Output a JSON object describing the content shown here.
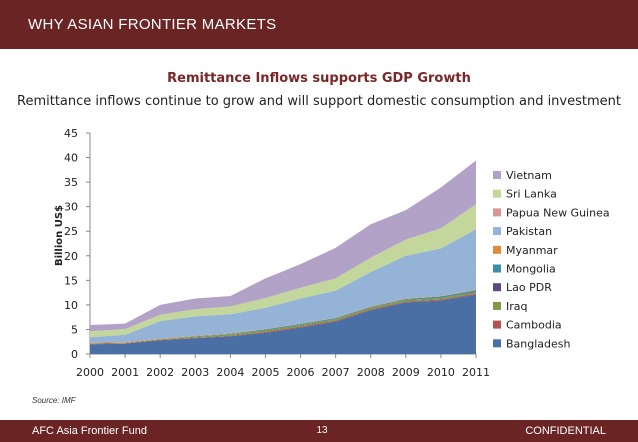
{
  "header": {
    "title": "WHY ASIAN FRONTIER MARKETS",
    "bg_color": "#6b2424"
  },
  "chart_data": {
    "type": "area",
    "stacked": true,
    "title": "Remittance Inflows supports GDP Growth",
    "subtitle": "Remittance inflows continue to grow and will support domestic consumption and investment",
    "xlabel": "",
    "ylabel": "Billion US$",
    "ylim": [
      0,
      45
    ],
    "yticks": [
      0,
      5,
      10,
      15,
      20,
      25,
      30,
      35,
      40,
      45
    ],
    "grid": false,
    "legend_position": "right",
    "x": [
      "2000",
      "2001",
      "2002",
      "2003",
      "2004",
      "2005",
      "2006",
      "2007",
      "2008",
      "2009",
      "2010",
      "2011"
    ],
    "series": [
      {
        "name": "Bangladesh",
        "color": "#4a6fa5",
        "values": [
          2.0,
          2.1,
          2.8,
          3.2,
          3.6,
          4.3,
          5.4,
          6.6,
          8.9,
          10.5,
          10.9,
          12.1
        ]
      },
      {
        "name": "Cambodia",
        "color": "#b5534e",
        "values": [
          0.1,
          0.1,
          0.1,
          0.1,
          0.1,
          0.2,
          0.2,
          0.2,
          0.2,
          0.2,
          0.2,
          0.2
        ]
      },
      {
        "name": "Iraq",
        "color": "#7f9a48",
        "values": [
          0.1,
          0.1,
          0.1,
          0.2,
          0.3,
          0.3,
          0.3,
          0.3,
          0.3,
          0.3,
          0.3,
          0.3
        ]
      },
      {
        "name": "Lao PDR",
        "color": "#5c4a7d",
        "values": [
          0.0,
          0.0,
          0.0,
          0.0,
          0.0,
          0.0,
          0.0,
          0.0,
          0.0,
          0.0,
          0.0,
          0.1
        ]
      },
      {
        "name": "Mongolia",
        "color": "#3e8ea6",
        "values": [
          0.0,
          0.0,
          0.0,
          0.1,
          0.1,
          0.2,
          0.2,
          0.2,
          0.2,
          0.2,
          0.3,
          0.3
        ]
      },
      {
        "name": "Myanmar",
        "color": "#e08a3c",
        "values": [
          0.1,
          0.1,
          0.1,
          0.1,
          0.1,
          0.1,
          0.1,
          0.1,
          0.1,
          0.1,
          0.1,
          0.1
        ]
      },
      {
        "name": "Pakistan",
        "color": "#95b3d7",
        "values": [
          1.1,
          1.5,
          3.6,
          4.0,
          3.9,
          4.3,
          5.1,
          5.5,
          7.0,
          8.7,
          9.7,
          12.3
        ]
      },
      {
        "name": "Papua New Guinea",
        "color": "#d99694",
        "values": [
          0.0,
          0.0,
          0.0,
          0.0,
          0.0,
          0.0,
          0.0,
          0.0,
          0.0,
          0.0,
          0.0,
          0.0
        ]
      },
      {
        "name": "Sri Lanka",
        "color": "#c3d69b",
        "values": [
          1.2,
          1.2,
          1.3,
          1.4,
          1.6,
          2.0,
          2.2,
          2.5,
          2.9,
          3.3,
          4.1,
          5.1
        ]
      },
      {
        "name": "Vietnam",
        "color": "#b3a2c7",
        "values": [
          1.3,
          1.1,
          2.0,
          2.2,
          2.1,
          4.0,
          4.8,
          6.2,
          6.8,
          6.0,
          8.3,
          8.9
        ]
      }
    ]
  },
  "source": "Source: IMF",
  "footer": {
    "left": "AFC Asia Frontier Fund",
    "page": "13",
    "right": "CONFIDENTIAL"
  }
}
